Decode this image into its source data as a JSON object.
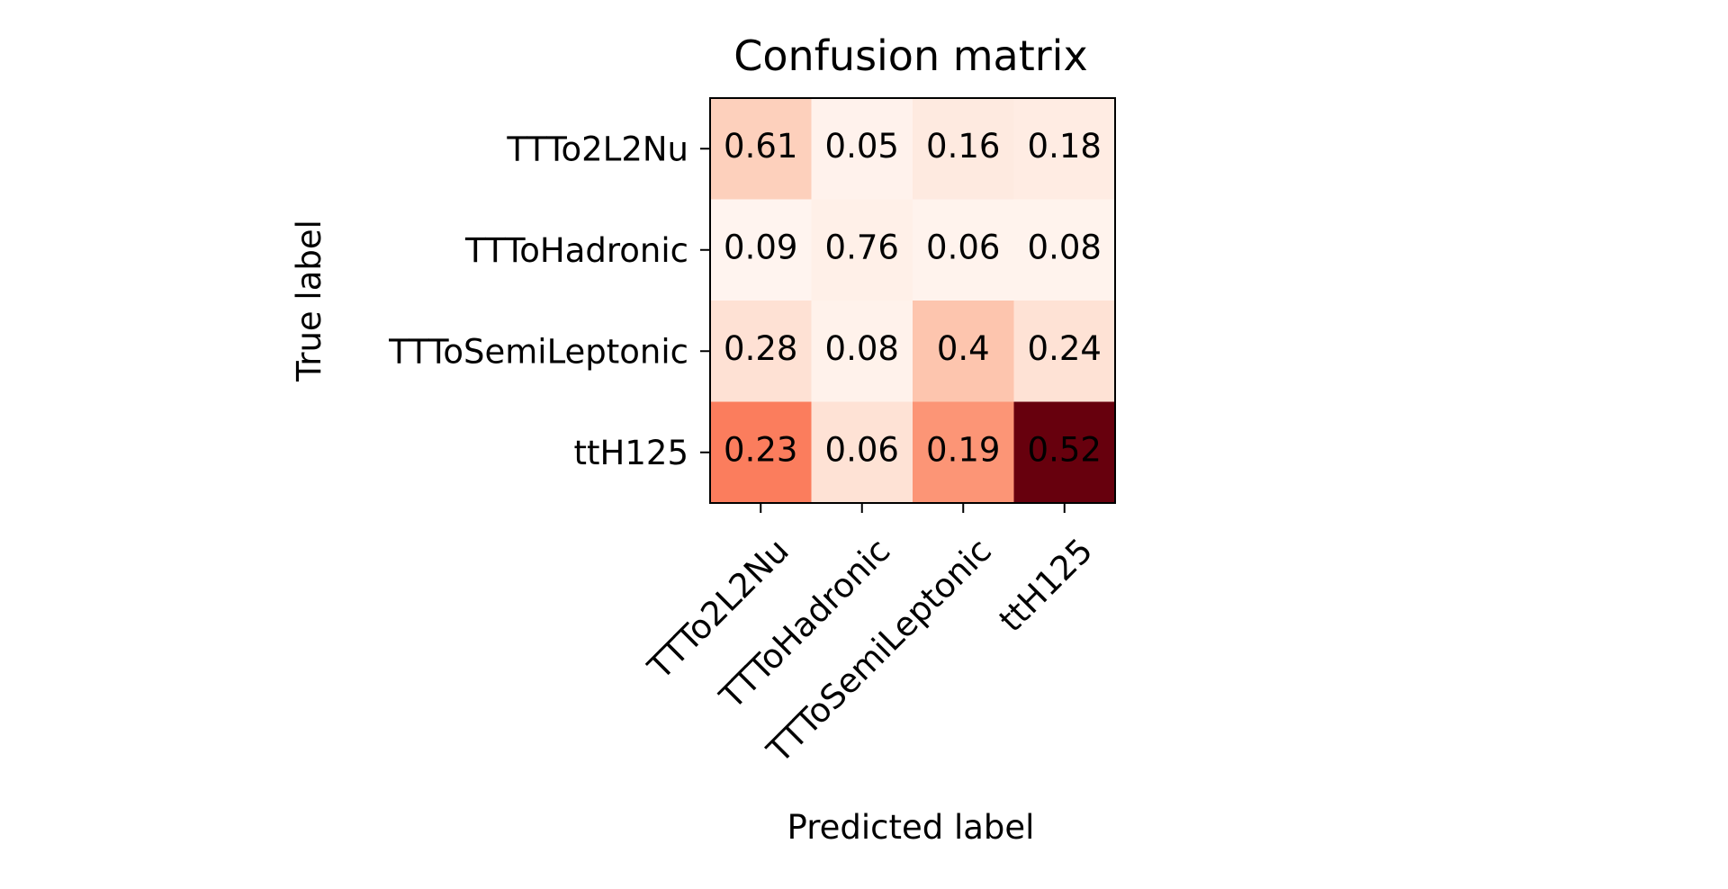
{
  "chart_data": {
    "type": "heatmap",
    "title": "Confusion matrix",
    "xlabel": "Predicted label",
    "ylabel": "True label",
    "x_categories": [
      "TTTo2L2Nu",
      "TTToHadronic",
      "TTToSemiLeptonic",
      "ttH125"
    ],
    "y_categories": [
      "TTTo2L2Nu",
      "TTToHadronic",
      "TTToSemiLeptonic",
      "ttH125"
    ],
    "values": [
      [
        0.61,
        0.05,
        0.16,
        0.18
      ],
      [
        0.09,
        0.76,
        0.06,
        0.08
      ],
      [
        0.28,
        0.08,
        0.4,
        0.24
      ],
      [
        0.23,
        0.06,
        0.19,
        0.52
      ]
    ],
    "cell_colors": [
      [
        "#fdd0bc",
        "#fff2ec",
        "#feeae0",
        "#ffece3"
      ],
      [
        "#fff4ef",
        "#fff0e8",
        "#fff3ed",
        "#fff3ed"
      ],
      [
        "#fee1d4",
        "#fff2eb",
        "#fdc5ae",
        "#fee2d5"
      ],
      [
        "#fb7d5d",
        "#fee2d5",
        "#fc9576",
        "#67000d"
      ]
    ],
    "colormap": "Reds",
    "grid": false
  }
}
